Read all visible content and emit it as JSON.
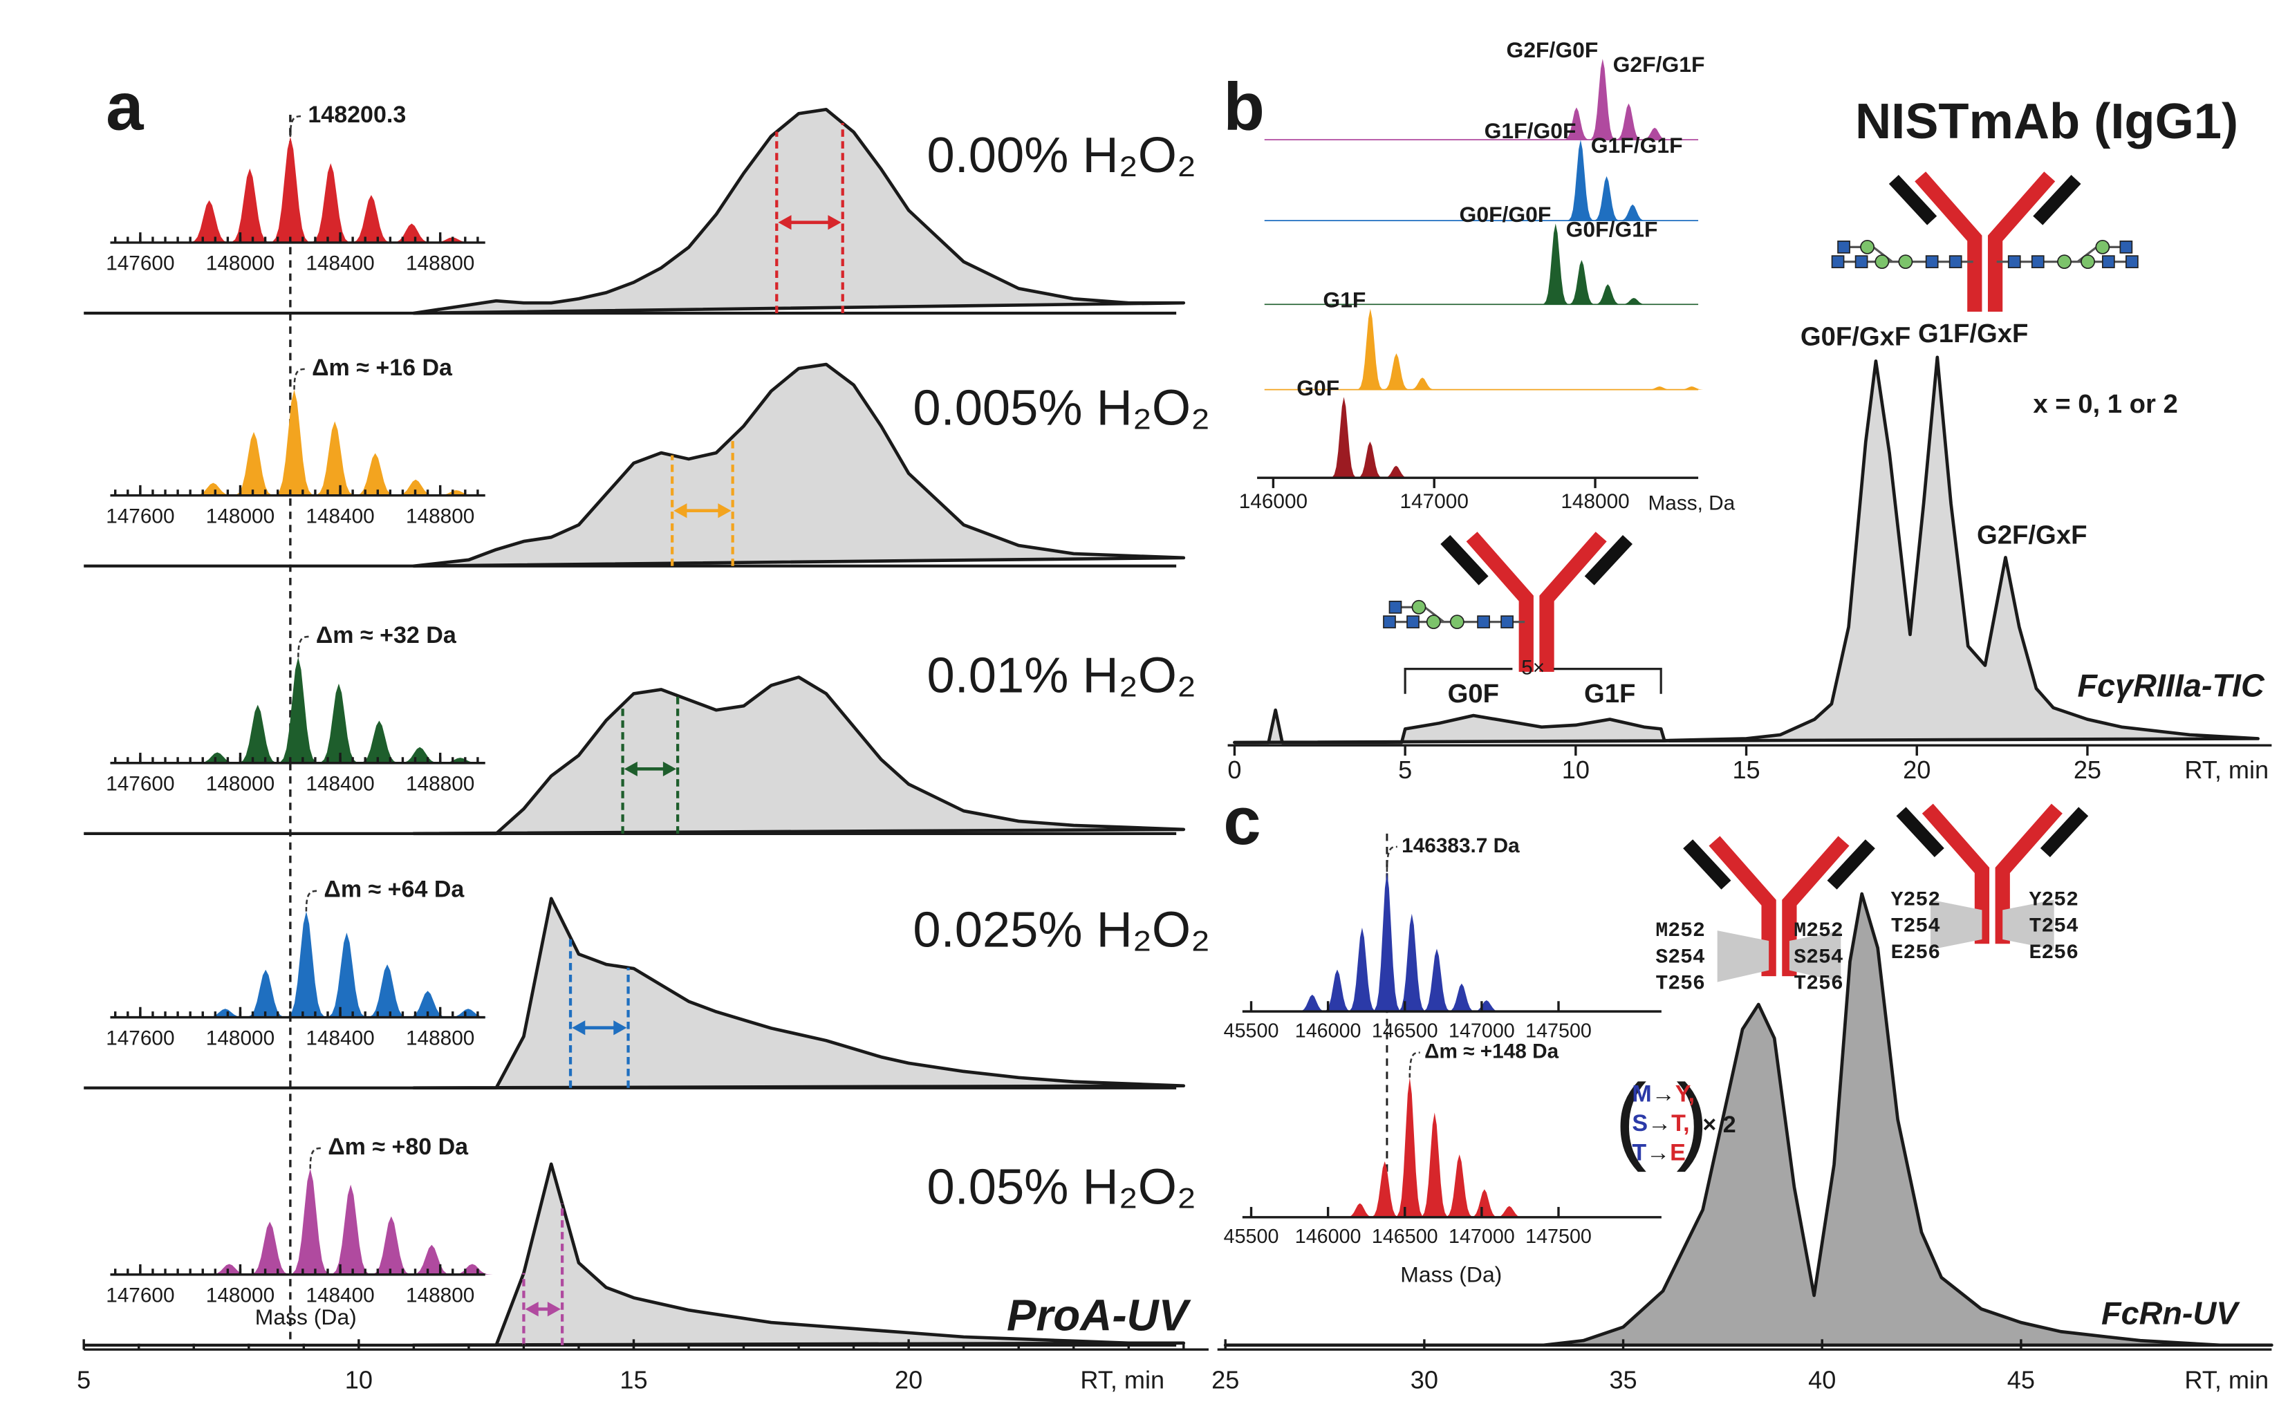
{
  "chart_data": [
    {
      "type": "stacked-chromatogram",
      "panel": "a",
      "x": [
        11,
        12,
        12.5,
        13,
        13.5,
        14,
        14.5,
        15,
        15.5,
        16,
        16.5,
        17,
        17.5,
        18,
        18.5,
        19,
        19.5,
        20,
        21,
        22,
        23,
        24,
        25
      ],
      "xlim": [
        5,
        25
      ],
      "xticks": [
        5,
        10,
        15,
        20
      ],
      "xminorstep": 1,
      "xlabel": "RT, min",
      "fill": "#d9d9d9",
      "watermark": "ProA-UV",
      "inset_xlim": [
        147480,
        148980
      ],
      "inset_xticks": [
        147600,
        148000,
        148400,
        148800
      ],
      "inset_xminorstep": 50,
      "inset_xlabel": "Mass (Da)",
      "reference_mass": 148200.3,
      "series": [
        {
          "name": "0.00% H₂O₂",
          "color": "#d7262b",
          "values": [
            0,
            4,
            6,
            5,
            5,
            7,
            10,
            15,
            22,
            32,
            48,
            68,
            86,
            97,
            99,
            88,
            70,
            50,
            25,
            12,
            7,
            5,
            5
          ],
          "fwhm": [
            17.6,
            18.8
          ],
          "inset": {
            "x": [
              147876,
              148038,
              148200.3,
              148362,
              148524,
              148686,
              148848
            ],
            "values": [
              40,
              70,
              100,
              75,
              45,
              18,
              5
            ]
          }
        },
        {
          "name": "0.005% H₂O₂",
          "color": "#f3a41f",
          "values": [
            0,
            3,
            8,
            12,
            14,
            20,
            35,
            50,
            55,
            52,
            55,
            68,
            85,
            96,
            98,
            88,
            68,
            45,
            20,
            10,
            6,
            5,
            4
          ],
          "fwhm": [
            15.7,
            16.8
          ],
          "inset": {
            "x": [
              147892,
              148054,
              148216,
              148378,
              148540,
              148702,
              148864
            ],
            "values": [
              12,
              60,
              100,
              70,
              40,
              15,
              5
            ],
            "annotation": "Δm ≈ +16 Da"
          }
        },
        {
          "name": "0.01% H₂O₂",
          "color": "#1e5e2c",
          "values": [
            0,
            0,
            0,
            12,
            28,
            38,
            55,
            68,
            70,
            65,
            60,
            62,
            72,
            76,
            68,
            52,
            36,
            24,
            11,
            6,
            4,
            3,
            2
          ],
          "fwhm": [
            14.8,
            15.8
          ],
          "inset": {
            "x": [
              147908,
              148070,
              148232,
              148394,
              148556,
              148718,
              148880
            ],
            "values": [
              10,
              55,
              100,
              75,
              40,
              15,
              5
            ],
            "annotation": "Δm ≈ +32 Da"
          }
        },
        {
          "name": "0.025% H₂O₂",
          "color": "#1f6fc0",
          "values": [
            0,
            0,
            0,
            25,
            92,
            65,
            60,
            58,
            50,
            42,
            37,
            33,
            29,
            26,
            23,
            19,
            15,
            12,
            8,
            5,
            3,
            2,
            1
          ],
          "fwhm": [
            13.85,
            14.9
          ],
          "inset": {
            "x": [
              147940,
              148102,
              148264,
              148426,
              148588,
              148750,
              148912
            ],
            "values": [
              8,
              45,
              100,
              80,
              50,
              25,
              8
            ],
            "annotation": "Δm ≈ +64 Da"
          }
        },
        {
          "name": "0.05% H₂O₂",
          "color": "#b04a9f",
          "values": [
            0,
            0,
            0,
            35,
            88,
            40,
            28,
            23,
            20,
            17,
            15,
            13,
            11,
            10,
            9,
            8,
            7,
            6,
            4,
            3,
            2,
            1,
            1
          ],
          "fwhm": [
            13.0,
            13.7
          ],
          "inset": {
            "x": [
              147956,
              148118,
              148280,
              148442,
              148604,
              148766,
              148928
            ],
            "values": [
              10,
              50,
              100,
              85,
              55,
              28,
              10
            ],
            "annotation": "Δm ≈ +80 Da"
          }
        }
      ]
    },
    {
      "type": "chromatogram",
      "panel": "b",
      "title": "NISTmAb (IgG1)",
      "x": [
        0,
        1,
        1.2,
        1.4,
        2,
        4.9,
        5,
        6,
        7,
        8,
        9,
        10,
        11,
        12,
        12.5,
        12.6,
        15,
        16,
        17,
        17.5,
        18,
        18.5,
        18.8,
        19.2,
        19.8,
        20.2,
        20.6,
        21,
        21.5,
        22,
        22.6,
        23,
        23.5,
        24,
        25,
        26,
        28,
        30
      ],
      "values": [
        0,
        0,
        8.4,
        0,
        0,
        0,
        3.5,
        5,
        7,
        5.5,
        4,
        4.5,
        6,
        4,
        3.5,
        0.5,
        1,
        2,
        6,
        10,
        30,
        78,
        99,
        75,
        28,
        62,
        100,
        62,
        25,
        20,
        48,
        30,
        14,
        9,
        6,
        4,
        2,
        1
      ],
      "xlim": [
        -0.2,
        30.4
      ],
      "xticks": [
        0,
        5,
        10,
        15,
        20,
        25
      ],
      "xlabel": "RT, min",
      "fill": "#d9d9d9",
      "peak_labels": [
        "G0F/GxF",
        "G1F/GxF",
        "G2F/GxF"
      ],
      "note": "x = 0, 1 or 2",
      "watermark": "FcγRIIIa-TIC",
      "bracket": {
        "range": [
          5,
          12.5
        ],
        "label": "5×",
        "labels": [
          "G0F",
          "G1F"
        ]
      },
      "inset": {
        "xlim": [
          145900,
          148640
        ],
        "xticks": [
          146000,
          147000,
          148000
        ],
        "xlabel": "Mass, Da",
        "series": [
          {
            "color": "#b04a9f",
            "labels": [
              "G2F/G0F",
              "G2F/G1F"
            ],
            "x": [
              147884,
              148046,
              148208,
              148370
            ],
            "values": [
              40,
              100,
              45,
              15
            ]
          },
          {
            "color": "#1f6fc0",
            "labels": [
              "G1F/G0F",
              "G1F/G1F"
            ],
            "x": [
              147909,
              148071,
              148233
            ],
            "values": [
              100,
              55,
              20
            ]
          },
          {
            "color": "#1e5e2c",
            "labels": [
              "G0F/G0F",
              "G0F/G1F"
            ],
            "x": [
              147754,
              147916,
              148078,
              148240
            ],
            "values": [
              100,
              55,
              25,
              8
            ]
          },
          {
            "color": "#f3a41f",
            "labels": [
              "G1F"
            ],
            "x": [
              146603,
              146765,
              146927,
              148400,
              148600
            ],
            "values": [
              100,
              45,
              15,
              4,
              4
            ]
          },
          {
            "color": "#9c1b22",
            "labels": [
              "G0F"
            ],
            "x": [
              146439,
              146601,
              146763
            ],
            "values": [
              100,
              45,
              15
            ]
          }
        ]
      }
    },
    {
      "type": "chromatogram",
      "panel": "c",
      "x": [
        25,
        33,
        34,
        35,
        36,
        37,
        37.5,
        38,
        38.4,
        38.8,
        39.3,
        39.8,
        40.3,
        40.7,
        41,
        41.4,
        41.9,
        42.5,
        43,
        44,
        45,
        46,
        47,
        48,
        50,
        51.3
      ],
      "values": [
        0,
        0,
        1,
        4,
        12,
        30,
        50,
        70,
        75.5,
        68,
        35,
        11,
        40,
        85,
        100,
        88,
        50,
        25,
        15,
        8,
        5,
        3,
        2,
        1,
        0,
        0
      ],
      "xlim": [
        24.8,
        51.3
      ],
      "xticks": [
        25,
        30,
        35,
        40,
        45
      ],
      "xlabel": "RT, min",
      "fill": "#a6a6a6",
      "watermark": "FcRn-UV",
      "inset_xlim": [
        145443,
        148170
      ],
      "inset_xticks": [
        {
          "value": 145500,
          "label": "45500"
        },
        146000,
        146500,
        147000,
        147500
      ],
      "inset_xlabel": "Mass (Da)",
      "reference_mass": 146383.7,
      "insets": [
        {
          "color": "#2b3aa8",
          "annotation": "146383.7 Da",
          "x": [
            145897.7,
            146059.7,
            146221.7,
            146383.7,
            146545.7,
            146707.7,
            146869.7,
            147031.7
          ],
          "values": [
            12,
            30,
            60,
            100,
            70,
            45,
            20,
            8
          ]
        },
        {
          "color": "#d7262b",
          "annotation": "Δm ≈ +148 Da",
          "x": [
            146207.7,
            146369.7,
            146531.7,
            146693.7,
            146855.7,
            147017.7,
            147179.7
          ],
          "values": [
            10,
            40,
            100,
            75,
            45,
            20,
            8
          ]
        }
      ],
      "mutations": {
        "wild_type": [
          "M252",
          "S254",
          "T256"
        ],
        "mutant": [
          "Y252",
          "T254",
          "E256"
        ]
      },
      "substitution": {
        "rows": [
          [
            "M",
            "→",
            "Y,"
          ],
          [
            "S",
            "→",
            "T,"
          ],
          [
            "T",
            "→",
            "E"
          ]
        ],
        "factor": "× 2"
      }
    }
  ]
}
